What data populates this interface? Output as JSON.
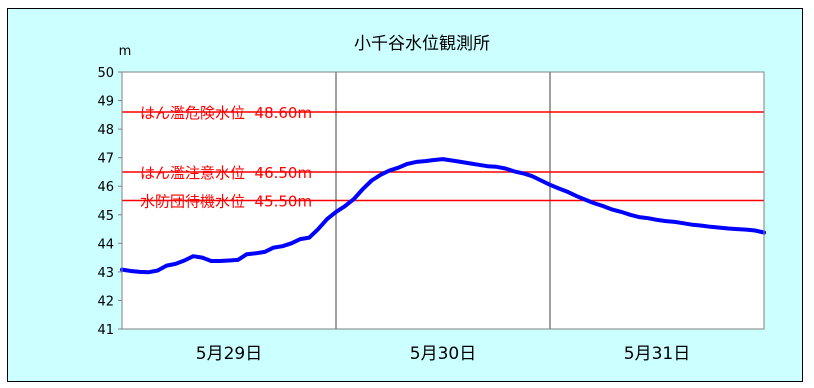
{
  "chart_data": {
    "type": "line",
    "title": "小千谷水位観測所",
    "ylabel": "m",
    "xlabel": "",
    "ylim": [
      41,
      50
    ],
    "yticks": [
      41,
      42,
      43,
      44,
      45,
      46,
      47,
      48,
      49,
      50
    ],
    "x_range": [
      0,
      72
    ],
    "x_categories": [
      "5月29日",
      "5月30日",
      "5月31日"
    ],
    "x_category_centers": [
      12,
      36,
      60
    ],
    "x_gridlines": [
      24,
      48
    ],
    "grid": {
      "horizontal": false,
      "vertical": true
    },
    "colors": {
      "background": "#ccffff",
      "plot_background": "#ffffff",
      "series": "#0000ff",
      "reference": "#ff0000"
    },
    "reference_lines": [
      {
        "label": "はん濫危険水位",
        "value_text": "48.60m",
        "value": 48.6
      },
      {
        "label": "はん濫注意水位",
        "value_text": "46.50m",
        "value": 46.5
      },
      {
        "label": "水防団待機水位",
        "value_text": "45.50m",
        "value": 45.5
      }
    ],
    "series": [
      {
        "x": [
          0,
          1,
          2,
          3,
          4,
          5,
          6,
          7,
          8,
          9,
          10,
          11,
          12,
          13,
          14,
          15,
          16,
          17,
          18,
          19,
          20,
          21,
          22,
          23,
          24,
          25,
          26,
          27,
          28,
          29,
          30,
          31,
          32,
          33,
          34,
          35,
          36,
          37,
          38,
          39,
          40,
          41,
          42,
          43,
          44,
          45,
          46,
          47,
          48,
          49,
          50,
          51,
          52,
          53,
          54,
          55,
          56,
          57,
          58,
          59,
          60,
          61,
          62,
          63,
          64,
          65,
          66,
          67,
          68,
          69,
          70,
          71,
          72
        ],
        "y": [
          43.08,
          43.03,
          43.0,
          42.99,
          43.05,
          43.22,
          43.28,
          43.4,
          43.55,
          43.5,
          43.38,
          43.38,
          43.4,
          43.42,
          43.62,
          43.65,
          43.7,
          43.85,
          43.9,
          44.0,
          44.15,
          44.2,
          44.5,
          44.85,
          45.1,
          45.3,
          45.55,
          45.9,
          46.2,
          46.4,
          46.55,
          46.65,
          46.78,
          46.85,
          46.88,
          46.92,
          46.95,
          46.9,
          46.85,
          46.8,
          46.75,
          46.7,
          46.68,
          46.62,
          46.52,
          46.45,
          46.35,
          46.2,
          46.05,
          45.92,
          45.8,
          45.65,
          45.52,
          45.4,
          45.3,
          45.18,
          45.1,
          45.0,
          44.92,
          44.88,
          44.82,
          44.78,
          44.75,
          44.7,
          44.65,
          44.62,
          44.58,
          44.55,
          44.52,
          44.5,
          44.48,
          44.45,
          44.38
        ]
      }
    ]
  }
}
